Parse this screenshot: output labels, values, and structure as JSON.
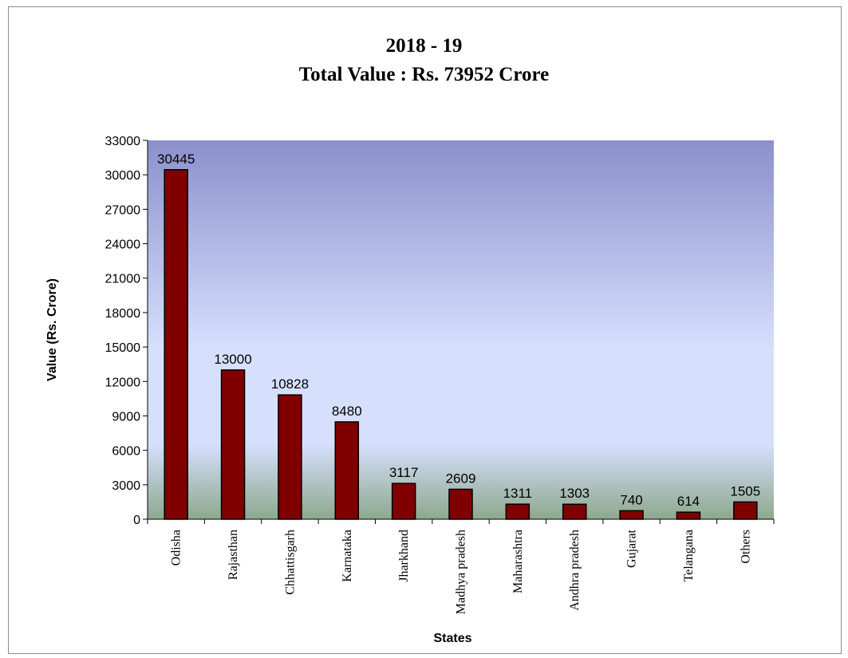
{
  "chart_data": {
    "type": "bar",
    "title": "2018 - 19",
    "subtitle": "Total Value : Rs. 73952 Crore",
    "xlabel": "States",
    "ylabel": "Value (Rs. Crore)",
    "ylim": [
      0,
      33000
    ],
    "yticks": [
      0,
      3000,
      6000,
      9000,
      12000,
      15000,
      18000,
      21000,
      24000,
      27000,
      30000,
      33000
    ],
    "categories": [
      "Odisha",
      "Rajasthan",
      "Chhattisgarh",
      "Karnataka",
      "Jharkhand",
      "Madhya pradesh",
      "Maharashtra",
      "Andhra pradesh",
      "Gujarat",
      "Telangana",
      "Others"
    ],
    "values": [
      30445,
      13000,
      10828,
      8480,
      3117,
      2609,
      1311,
      1303,
      740,
      614,
      1505
    ],
    "data_labels": [
      "30445",
      "13000",
      "10828",
      "8480",
      "3117",
      "2609",
      "1311",
      "1303",
      "740",
      "614",
      "1505"
    ],
    "grid": false,
    "legend": "none",
    "colors": {
      "bar": "#800000",
      "bar_border": "#000000",
      "plot_top": "#8b90cc",
      "plot_mid": "#d6e0fd",
      "plot_bottom": "#8ea88e"
    }
  }
}
